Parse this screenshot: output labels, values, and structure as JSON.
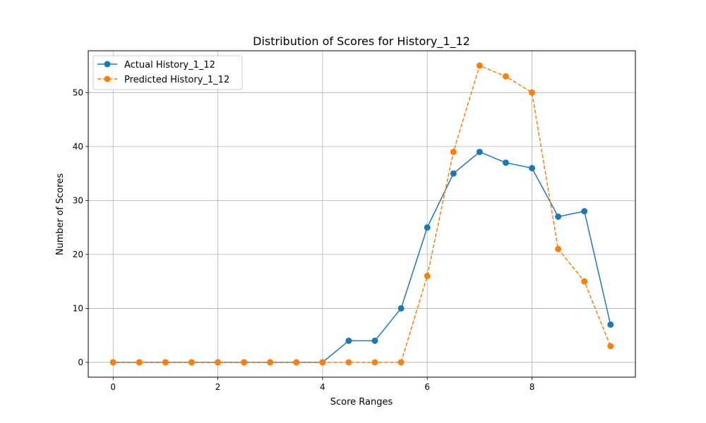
{
  "chart_data": {
    "type": "line",
    "title": "Distribution of Scores for History_1_12",
    "xlabel": "Score Ranges",
    "ylabel": "Number of Scores",
    "xlim": [
      -0.475,
      9.975
    ],
    "ylim": [
      -2.75,
      57.75
    ],
    "xticks": [
      0,
      2,
      4,
      6,
      8
    ],
    "yticks": [
      0,
      10,
      20,
      30,
      40,
      50
    ],
    "grid": true,
    "legend_position": "top-left",
    "x": [
      0,
      0.5,
      1,
      1.5,
      2,
      2.5,
      3,
      3.5,
      4,
      4.5,
      5,
      5.5,
      6,
      6.5,
      7,
      7.5,
      8,
      8.5,
      9,
      9.5
    ],
    "series": [
      {
        "name": "Actual History_1_12",
        "color": "#1f77b4",
        "line_style": "solid",
        "marker": "circle",
        "values": [
          0,
          0,
          0,
          0,
          0,
          0,
          0,
          0,
          0,
          4,
          4,
          10,
          25,
          35,
          39,
          37,
          36,
          27,
          28,
          7
        ]
      },
      {
        "name": "Predicted History_1_12",
        "color": "#ff7f0e",
        "line_style": "dashed",
        "marker": "circle",
        "values": [
          0,
          0,
          0,
          0,
          0,
          0,
          0,
          0,
          0,
          0,
          0,
          0,
          16,
          39,
          55,
          53,
          50,
          21,
          15,
          3
        ]
      }
    ]
  }
}
